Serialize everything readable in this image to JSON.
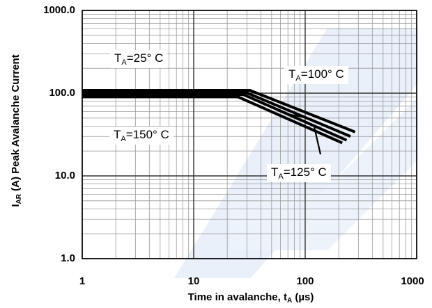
{
  "chart_data": {
    "type": "line",
    "x_scale": "log",
    "y_scale": "log",
    "xlim": [
      1,
      1000
    ],
    "ylim": [
      1,
      1000
    ],
    "grid": true,
    "x_ticks": [
      "1",
      "10",
      "100",
      "1000"
    ],
    "y_ticks": [
      "1.0",
      "10.0",
      "100.0",
      "1000.0"
    ],
    "xlabel": {
      "main": "Time in avalanche, t",
      "sub": "A",
      "unit": " (µs)"
    },
    "ylabel": {
      "main": "I",
      "sub": "AR",
      "rest": " (A) Peak Avalanche Current"
    },
    "series": [
      {
        "name": "TA=25°C",
        "x": [
          1,
          32,
          280
        ],
        "y": [
          108,
          108,
          34
        ]
      },
      {
        "name": "TA=100°C",
        "x": [
          1,
          30,
          255
        ],
        "y": [
          101,
          101,
          30
        ]
      },
      {
        "name": "TA=125°C",
        "x": [
          1,
          28,
          235
        ],
        "y": [
          96,
          96,
          27
        ]
      },
      {
        "name": "TA=150°C",
        "x": [
          1,
          25,
          215
        ],
        "y": [
          90,
          90,
          25
        ]
      }
    ],
    "annotations": [
      {
        "id": "a25",
        "main": "T",
        "sub": "A",
        "rest": "=25°  C"
      },
      {
        "id": "a100",
        "main": "T",
        "sub": "A",
        "rest": "=100°  C"
      },
      {
        "id": "a150",
        "main": "T",
        "sub": "A",
        "rest": "=150°  C"
      },
      {
        "id": "a125",
        "main": "T",
        "sub": "A",
        "rest": "=125°  C"
      }
    ]
  }
}
